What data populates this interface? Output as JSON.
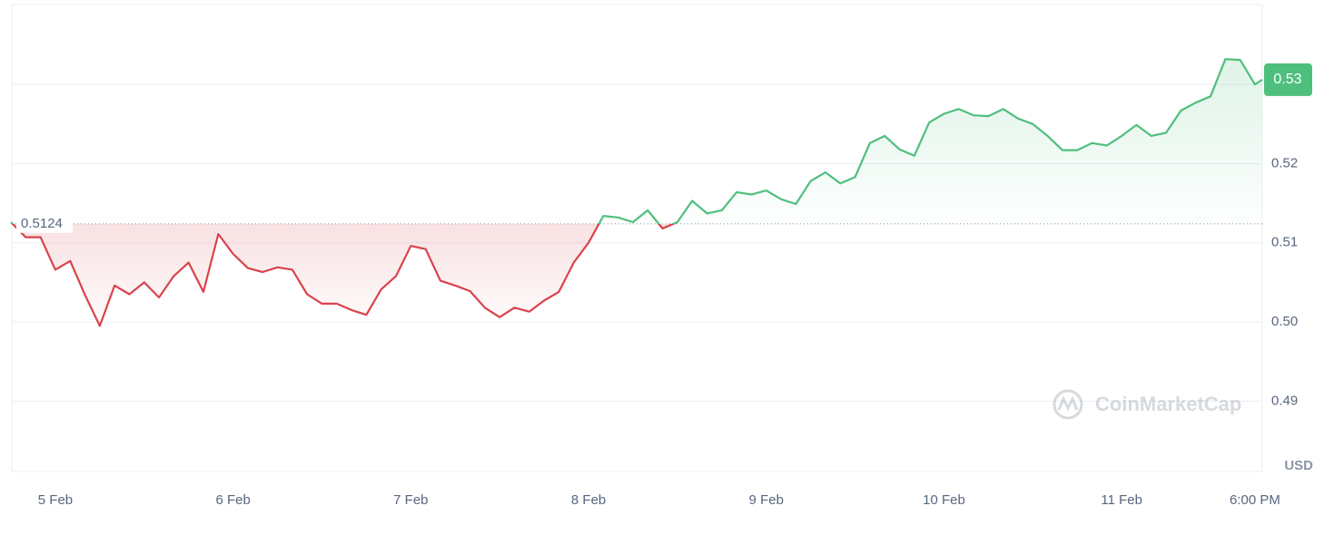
{
  "chart_data": {
    "type": "line",
    "x": [
      4.75,
      4.8333,
      4.9167,
      5,
      5.0833,
      5.1667,
      5.25,
      5.3333,
      5.4167,
      5.5,
      5.5833,
      5.6667,
      5.75,
      5.8333,
      5.9167,
      6,
      6.0833,
      6.1667,
      6.25,
      6.3333,
      6.4167,
      6.5,
      6.5833,
      6.6667,
      6.75,
      6.8333,
      6.9167,
      7,
      7.0833,
      7.1667,
      7.25,
      7.3333,
      7.4167,
      7.5,
      7.5833,
      7.6667,
      7.75,
      7.8333,
      7.9167,
      8,
      8.0833,
      8.1667,
      8.25,
      8.3333,
      8.4167,
      8.5,
      8.5833,
      8.6667,
      8.75,
      8.8333,
      8.9167,
      9,
      9.0833,
      9.1667,
      9.25,
      9.3333,
      9.4167,
      9.5,
      9.5833,
      9.6667,
      9.75,
      9.8333,
      9.9167,
      10,
      10.0833,
      10.1667,
      10.25,
      10.3333,
      10.4167,
      10.5,
      10.5833,
      10.6667,
      10.75,
      10.8333,
      10.9167,
      11,
      11.0833,
      11.1667,
      11.25,
      11.3333,
      11.4167,
      11.5,
      11.5833,
      11.6667,
      11.75,
      11.79
    ],
    "series": [
      {
        "values": [
          0.5126,
          0.5107,
          0.5107,
          0.5066,
          0.5077,
          0.5034,
          0.4995,
          0.5046,
          0.5035,
          0.505,
          0.5031,
          0.5058,
          0.5075,
          0.5038,
          0.5111,
          0.5086,
          0.5068,
          0.5063,
          0.5069,
          0.5066,
          0.5035,
          0.5023,
          0.5023,
          0.5015,
          0.5009,
          0.5041,
          0.5058,
          0.5096,
          0.5092,
          0.5052,
          0.5046,
          0.5039,
          0.5018,
          0.5006,
          0.5018,
          0.5013,
          0.5027,
          0.5038,
          0.5075,
          0.51,
          0.5134,
          0.5132,
          0.5126,
          0.5141,
          0.5118,
          0.5126,
          0.5153,
          0.5137,
          0.5141,
          0.5164,
          0.5161,
          0.5166,
          0.5155,
          0.5149,
          0.5178,
          0.5189,
          0.5175,
          0.5183,
          0.5226,
          0.5235,
          0.5218,
          0.521,
          0.5252,
          0.5263,
          0.5269,
          0.5261,
          0.526,
          0.5269,
          0.5257,
          0.525,
          0.5235,
          0.5217,
          0.5217,
          0.5226,
          0.5223,
          0.5235,
          0.5249,
          0.5235,
          0.5239,
          0.5267,
          0.5277,
          0.5285,
          0.5332,
          0.5331,
          0.53,
          0.5306
        ]
      }
    ],
    "up_color": "#4fbf7e",
    "down_color": "#d9434b",
    "baseline": 0.5124,
    "current_price": {
      "value": 0.5306,
      "label": "0.53"
    },
    "xlim": [
      4.755,
      11.791
    ],
    "xticks": [
      {
        "value": 5,
        "label": "5 Feb"
      },
      {
        "value": 6,
        "label": "6 Feb"
      },
      {
        "value": 7,
        "label": "7 Feb"
      },
      {
        "value": 8,
        "label": "8 Feb"
      },
      {
        "value": 9,
        "label": "9 Feb"
      },
      {
        "value": 10,
        "label": "10 Feb"
      },
      {
        "value": 11,
        "label": "11 Feb"
      },
      {
        "value": 11.75,
        "label": "6:00 PM"
      }
    ],
    "ylim": [
      0.4811,
      0.5401
    ],
    "yticks": [
      {
        "value": 0.49,
        "label": "0.49"
      },
      {
        "value": 0.5,
        "label": "0.50"
      },
      {
        "value": 0.51,
        "label": "0.51"
      },
      {
        "value": 0.52,
        "label": "0.52"
      },
      {
        "value": 0.53,
        "label": "0.53"
      }
    ],
    "currency": "USD",
    "watermark": "CoinMarketCap",
    "grid": true
  }
}
